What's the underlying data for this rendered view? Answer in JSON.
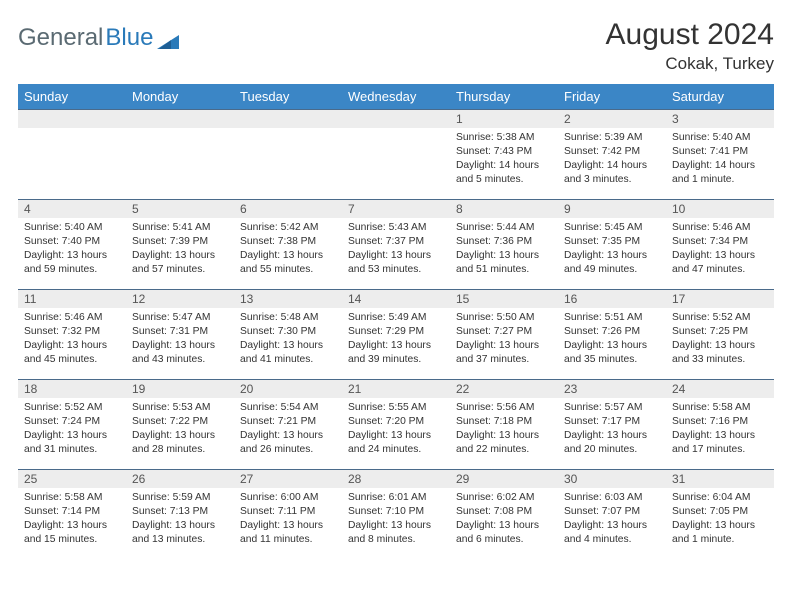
{
  "brand": {
    "part1": "General",
    "part2": "Blue"
  },
  "title": "August 2024",
  "location": "Cokak, Turkey",
  "colors": {
    "header_bg": "#3b86c6",
    "header_text": "#ffffff",
    "daynum_bg": "#ededed",
    "cell_border": "#4a6a8a",
    "text": "#333333",
    "brand_gray": "#5a6a72",
    "brand_blue": "#2a7ab9"
  },
  "day_headers": [
    "Sunday",
    "Monday",
    "Tuesday",
    "Wednesday",
    "Thursday",
    "Friday",
    "Saturday"
  ],
  "weeks": [
    [
      {
        "n": "",
        "sr": "",
        "ss": "",
        "dl": ""
      },
      {
        "n": "",
        "sr": "",
        "ss": "",
        "dl": ""
      },
      {
        "n": "",
        "sr": "",
        "ss": "",
        "dl": ""
      },
      {
        "n": "",
        "sr": "",
        "ss": "",
        "dl": ""
      },
      {
        "n": "1",
        "sr": "Sunrise: 5:38 AM",
        "ss": "Sunset: 7:43 PM",
        "dl": "Daylight: 14 hours and 5 minutes."
      },
      {
        "n": "2",
        "sr": "Sunrise: 5:39 AM",
        "ss": "Sunset: 7:42 PM",
        "dl": "Daylight: 14 hours and 3 minutes."
      },
      {
        "n": "3",
        "sr": "Sunrise: 5:40 AM",
        "ss": "Sunset: 7:41 PM",
        "dl": "Daylight: 14 hours and 1 minute."
      }
    ],
    [
      {
        "n": "4",
        "sr": "Sunrise: 5:40 AM",
        "ss": "Sunset: 7:40 PM",
        "dl": "Daylight: 13 hours and 59 minutes."
      },
      {
        "n": "5",
        "sr": "Sunrise: 5:41 AM",
        "ss": "Sunset: 7:39 PM",
        "dl": "Daylight: 13 hours and 57 minutes."
      },
      {
        "n": "6",
        "sr": "Sunrise: 5:42 AM",
        "ss": "Sunset: 7:38 PM",
        "dl": "Daylight: 13 hours and 55 minutes."
      },
      {
        "n": "7",
        "sr": "Sunrise: 5:43 AM",
        "ss": "Sunset: 7:37 PM",
        "dl": "Daylight: 13 hours and 53 minutes."
      },
      {
        "n": "8",
        "sr": "Sunrise: 5:44 AM",
        "ss": "Sunset: 7:36 PM",
        "dl": "Daylight: 13 hours and 51 minutes."
      },
      {
        "n": "9",
        "sr": "Sunrise: 5:45 AM",
        "ss": "Sunset: 7:35 PM",
        "dl": "Daylight: 13 hours and 49 minutes."
      },
      {
        "n": "10",
        "sr": "Sunrise: 5:46 AM",
        "ss": "Sunset: 7:34 PM",
        "dl": "Daylight: 13 hours and 47 minutes."
      }
    ],
    [
      {
        "n": "11",
        "sr": "Sunrise: 5:46 AM",
        "ss": "Sunset: 7:32 PM",
        "dl": "Daylight: 13 hours and 45 minutes."
      },
      {
        "n": "12",
        "sr": "Sunrise: 5:47 AM",
        "ss": "Sunset: 7:31 PM",
        "dl": "Daylight: 13 hours and 43 minutes."
      },
      {
        "n": "13",
        "sr": "Sunrise: 5:48 AM",
        "ss": "Sunset: 7:30 PM",
        "dl": "Daylight: 13 hours and 41 minutes."
      },
      {
        "n": "14",
        "sr": "Sunrise: 5:49 AM",
        "ss": "Sunset: 7:29 PM",
        "dl": "Daylight: 13 hours and 39 minutes."
      },
      {
        "n": "15",
        "sr": "Sunrise: 5:50 AM",
        "ss": "Sunset: 7:27 PM",
        "dl": "Daylight: 13 hours and 37 minutes."
      },
      {
        "n": "16",
        "sr": "Sunrise: 5:51 AM",
        "ss": "Sunset: 7:26 PM",
        "dl": "Daylight: 13 hours and 35 minutes."
      },
      {
        "n": "17",
        "sr": "Sunrise: 5:52 AM",
        "ss": "Sunset: 7:25 PM",
        "dl": "Daylight: 13 hours and 33 minutes."
      }
    ],
    [
      {
        "n": "18",
        "sr": "Sunrise: 5:52 AM",
        "ss": "Sunset: 7:24 PM",
        "dl": "Daylight: 13 hours and 31 minutes."
      },
      {
        "n": "19",
        "sr": "Sunrise: 5:53 AM",
        "ss": "Sunset: 7:22 PM",
        "dl": "Daylight: 13 hours and 28 minutes."
      },
      {
        "n": "20",
        "sr": "Sunrise: 5:54 AM",
        "ss": "Sunset: 7:21 PM",
        "dl": "Daylight: 13 hours and 26 minutes."
      },
      {
        "n": "21",
        "sr": "Sunrise: 5:55 AM",
        "ss": "Sunset: 7:20 PM",
        "dl": "Daylight: 13 hours and 24 minutes."
      },
      {
        "n": "22",
        "sr": "Sunrise: 5:56 AM",
        "ss": "Sunset: 7:18 PM",
        "dl": "Daylight: 13 hours and 22 minutes."
      },
      {
        "n": "23",
        "sr": "Sunrise: 5:57 AM",
        "ss": "Sunset: 7:17 PM",
        "dl": "Daylight: 13 hours and 20 minutes."
      },
      {
        "n": "24",
        "sr": "Sunrise: 5:58 AM",
        "ss": "Sunset: 7:16 PM",
        "dl": "Daylight: 13 hours and 17 minutes."
      }
    ],
    [
      {
        "n": "25",
        "sr": "Sunrise: 5:58 AM",
        "ss": "Sunset: 7:14 PM",
        "dl": "Daylight: 13 hours and 15 minutes."
      },
      {
        "n": "26",
        "sr": "Sunrise: 5:59 AM",
        "ss": "Sunset: 7:13 PM",
        "dl": "Daylight: 13 hours and 13 minutes."
      },
      {
        "n": "27",
        "sr": "Sunrise: 6:00 AM",
        "ss": "Sunset: 7:11 PM",
        "dl": "Daylight: 13 hours and 11 minutes."
      },
      {
        "n": "28",
        "sr": "Sunrise: 6:01 AM",
        "ss": "Sunset: 7:10 PM",
        "dl": "Daylight: 13 hours and 8 minutes."
      },
      {
        "n": "29",
        "sr": "Sunrise: 6:02 AM",
        "ss": "Sunset: 7:08 PM",
        "dl": "Daylight: 13 hours and 6 minutes."
      },
      {
        "n": "30",
        "sr": "Sunrise: 6:03 AM",
        "ss": "Sunset: 7:07 PM",
        "dl": "Daylight: 13 hours and 4 minutes."
      },
      {
        "n": "31",
        "sr": "Sunrise: 6:04 AM",
        "ss": "Sunset: 7:05 PM",
        "dl": "Daylight: 13 hours and 1 minute."
      }
    ]
  ]
}
